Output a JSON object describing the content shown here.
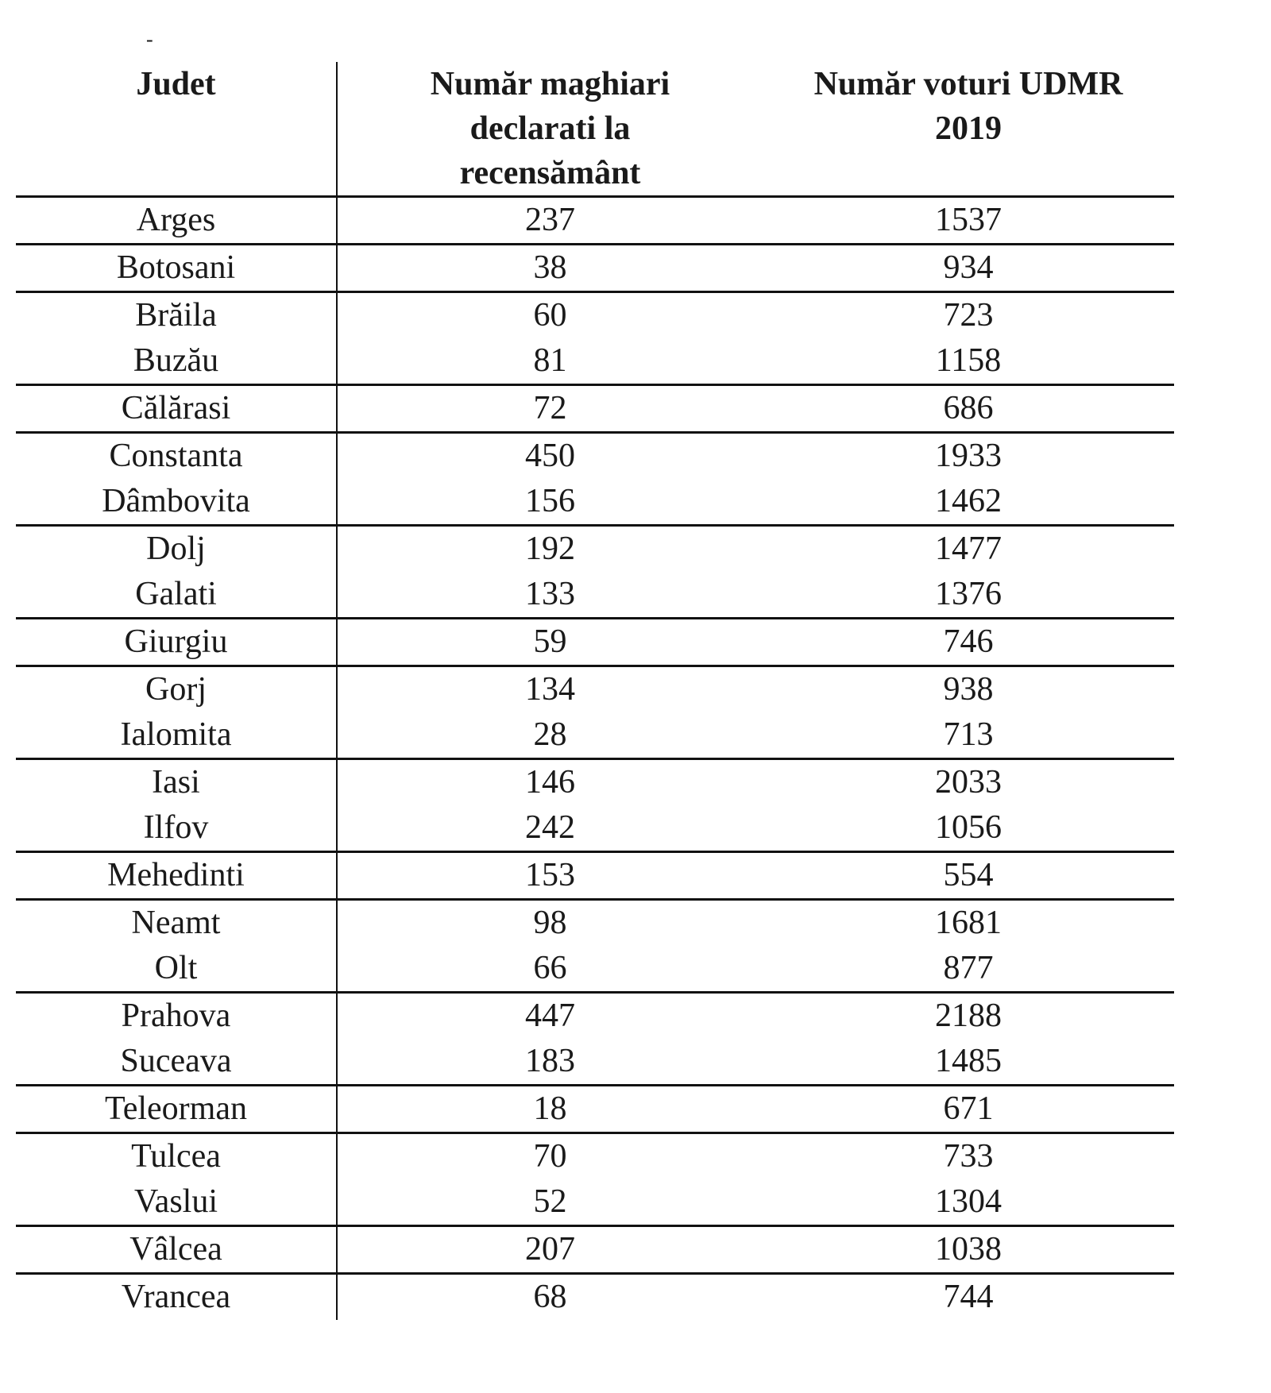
{
  "stray_mark": "-",
  "table": {
    "headers": {
      "judet": "Judet",
      "maghiari": "Număr maghiari\ndeclarati la\nrecensământ",
      "voturi": "Număr voturi UDMR\n2019"
    },
    "groups": [
      [
        {
          "judet": "Arges",
          "maghiari": "237",
          "voturi": "1537"
        }
      ],
      [
        {
          "judet": "Botosani",
          "maghiari": "38",
          "voturi": "934"
        }
      ],
      [
        {
          "judet": "Brăila",
          "maghiari": "60",
          "voturi": "723"
        },
        {
          "judet": "Buzău",
          "maghiari": "81",
          "voturi": "1158"
        }
      ],
      [
        {
          "judet": "Călărasi",
          "maghiari": "72",
          "voturi": "686"
        }
      ],
      [
        {
          "judet": "Constanta",
          "maghiari": "450",
          "voturi": "1933"
        },
        {
          "judet": "Dâmbovita",
          "maghiari": "156",
          "voturi": "1462"
        }
      ],
      [
        {
          "judet": "Dolj",
          "maghiari": "192",
          "voturi": "1477"
        },
        {
          "judet": "Galati",
          "maghiari": "133",
          "voturi": "1376"
        }
      ],
      [
        {
          "judet": "Giurgiu",
          "maghiari": "59",
          "voturi": "746"
        }
      ],
      [
        {
          "judet": "Gorj",
          "maghiari": "134",
          "voturi": "938"
        },
        {
          "judet": "Ialomita",
          "maghiari": "28",
          "voturi": "713"
        }
      ],
      [
        {
          "judet": "Iasi",
          "maghiari": "146",
          "voturi": "2033"
        },
        {
          "judet": "Ilfov",
          "maghiari": "242",
          "voturi": "1056"
        }
      ],
      [
        {
          "judet": "Mehedinti",
          "maghiari": "153",
          "voturi": "554"
        }
      ],
      [
        {
          "judet": "Neamt",
          "maghiari": "98",
          "voturi": "1681"
        },
        {
          "judet": "Olt",
          "maghiari": "66",
          "voturi": "877"
        }
      ],
      [
        {
          "judet": "Prahova",
          "maghiari": "447",
          "voturi": "2188"
        },
        {
          "judet": "Suceava",
          "maghiari": "183",
          "voturi": "1485"
        }
      ],
      [
        {
          "judet": "Teleorman",
          "maghiari": "18",
          "voturi": "671"
        }
      ],
      [
        {
          "judet": "Tulcea",
          "maghiari": "70",
          "voturi": "733"
        },
        {
          "judet": "Vaslui",
          "maghiari": "52",
          "voturi": "1304"
        }
      ],
      [
        {
          "judet": "Vâlcea",
          "maghiari": "207",
          "voturi": "1038"
        }
      ],
      [
        {
          "judet": "Vrancea",
          "maghiari": "68",
          "voturi": "744"
        }
      ]
    ]
  }
}
